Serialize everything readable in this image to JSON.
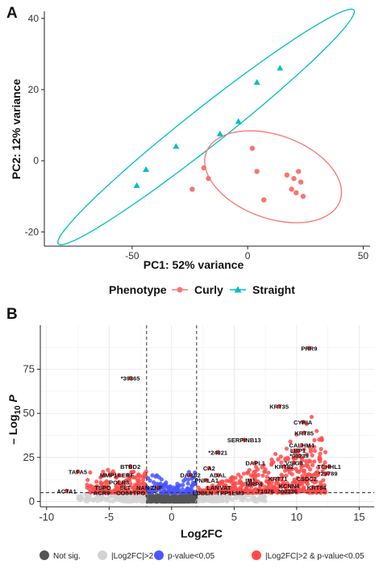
{
  "chart_data": [
    {
      "panel": "A",
      "type": "scatter",
      "xlabel": "PC1: 52% variance",
      "ylabel": "PC2: 12% variance",
      "xlim": [
        -88,
        53
      ],
      "ylim": [
        -24,
        42
      ],
      "xticks": [
        -50,
        0,
        50
      ],
      "yticks": [
        -20,
        0,
        20,
        40
      ],
      "grid": false,
      "legend": {
        "placement": "bottom",
        "title": "Phenotype",
        "entries": [
          "Curly",
          "Straight"
        ]
      },
      "colors": {
        "Curly": "#f8766d",
        "Straight": "#00bfc4"
      },
      "series": [
        {
          "name": "Curly",
          "marker": "circle",
          "points": [
            [
              -19,
              -2
            ],
            [
              -17,
              -5
            ],
            [
              -24,
              -8
            ],
            [
              2,
              3.5
            ],
            [
              4,
              -3
            ],
            [
              7,
              -11
            ],
            [
              17,
              -4
            ],
            [
              19,
              -8
            ],
            [
              20,
              -5
            ],
            [
              21,
              -9
            ],
            [
              22,
              -3
            ],
            [
              23,
              -6
            ],
            [
              24,
              -10
            ]
          ]
        },
        {
          "name": "Straight",
          "marker": "triangle",
          "points": [
            [
              -48,
              -7
            ],
            [
              -44,
              -2.5
            ],
            [
              -31,
              4
            ],
            [
              -12,
              7.5
            ],
            [
              -4,
              11
            ],
            [
              4,
              22
            ],
            [
              14,
              26
            ]
          ]
        }
      ],
      "ellipses": [
        {
          "series": "Straight",
          "cx": -18,
          "cy": 9.5,
          "rx": 72,
          "ry": 6,
          "angle_deg": 27
        },
        {
          "series": "Curly",
          "cx": 11,
          "cy": -4.5,
          "rx": 30,
          "ry": 12,
          "angle_deg": -10
        }
      ]
    },
    {
      "panel": "B",
      "type": "scatter",
      "xlabel": "Log2FC",
      "ylabel": "-Log10 P",
      "xlim": [
        -10.5,
        16.2
      ],
      "ylim": [
        -3,
        100
      ],
      "xticks": [
        -10,
        -5,
        0,
        5,
        10,
        15
      ],
      "yticks": [
        0,
        25,
        50,
        75
      ],
      "cutoffs": {
        "log2fc": [
          -2,
          2
        ],
        "neglog10p": 5
      },
      "legend": {
        "placement": "bottom",
        "entries": [
          "Not sig.",
          "|Log2FC|>2",
          "p-value<0.05",
          "|Log2FC|>2 & p-value<0.05"
        ]
      },
      "colors": {
        "Not sig.": "#555555",
        "|Log2FC|>2": "#d3d3d3",
        "p-value<0.05": "#4a55ff",
        "|Log2FC|>2 & p-value<0.05": "#ff4b4b"
      },
      "labels": [
        {
          "text": "PRR9",
          "x": 11.0,
          "y": 87
        },
        {
          "text": "*39365",
          "x": -3.3,
          "y": 70
        },
        {
          "text": "KRT35",
          "x": 8.6,
          "y": 54
        },
        {
          "text": "CYRIA",
          "x": 10.5,
          "y": 45
        },
        {
          "text": "SERPINB13",
          "x": 5.8,
          "y": 35
        },
        {
          "text": "KRT85",
          "x": 10.6,
          "y": 39
        },
        {
          "text": "CALHM4",
          "x": 10.4,
          "y": 32
        },
        {
          "text": "LBP1",
          "x": 10.1,
          "y": 29
        },
        {
          "text": "*24021",
          "x": 3.7,
          "y": 28
        },
        {
          "text": "*00239",
          "x": 10.2,
          "y": 26
        },
        {
          "text": "DAPL1",
          "x": 6.7,
          "y": 22
        },
        {
          "text": "VSIG8",
          "x": 9.8,
          "y": 22
        },
        {
          "text": "TCHHL1",
          "x": 12.6,
          "y": 20
        },
        {
          "text": "BTBD2",
          "x": -3.3,
          "y": 20
        },
        {
          "text": "KRT82",
          "x": 9.0,
          "y": 20
        },
        {
          "text": "CA2",
          "x": 3.0,
          "y": 19
        },
        {
          "text": "TAFA5",
          "x": -7.5,
          "y": 17
        },
        {
          "text": "DARS2",
          "x": 1.5,
          "y": 15
        },
        {
          "text": "ADAL",
          "x": 3.7,
          "y": 15
        },
        {
          "text": "*29789",
          "x": 12.5,
          "y": 16
        },
        {
          "text": "MMP16",
          "x": -4.9,
          "y": 15
        },
        {
          "text": "ERF",
          "x": -3.5,
          "y": 15
        },
        {
          "text": "KRT71",
          "x": 8.5,
          "y": 13
        },
        {
          "text": "CSDC2",
          "x": 10.8,
          "y": 13
        },
        {
          "text": "PNPLA1",
          "x": 2.8,
          "y": 12
        },
        {
          "text": "IM1",
          "x": 6.3,
          "y": 12
        },
        {
          "text": "POLR3",
          "x": -4.2,
          "y": 11
        },
        {
          "text": "MRP4",
          "x": 6.6,
          "y": 10
        },
        {
          "text": "KCNN4",
          "x": 9.4,
          "y": 9
        },
        {
          "text": "TSPO",
          "x": -5.5,
          "y": 8
        },
        {
          "text": "SLT",
          "x": -3.7,
          "y": 8
        },
        {
          "text": "NAN",
          "x": -2.3,
          "y": 8
        },
        {
          "text": "ZNF",
          "x": -1.2,
          "y": 8
        },
        {
          "text": "LAN",
          "x": 3.3,
          "y": 8
        },
        {
          "text": "VAT",
          "x": 4.3,
          "y": 8
        },
        {
          "text": "KRT84",
          "x": 11.6,
          "y": 8
        },
        {
          "text": "ACTA1",
          "x": -8.4,
          "y": 6
        },
        {
          "text": "ACR9",
          "x": -5.6,
          "y": 5
        },
        {
          "text": "CO04",
          "x": -3.8,
          "y": 5
        },
        {
          "text": "TPO",
          "x": -2.6,
          "y": 5
        },
        {
          "text": "LDBLN",
          "x": 2.5,
          "y": 5
        },
        {
          "text": "TPP1",
          "x": 4.2,
          "y": 5
        },
        {
          "text": "LM3",
          "x": 5.3,
          "y": 5
        },
        {
          "text": "T1076",
          "x": 7.5,
          "y": 6
        },
        {
          "text": "*00236",
          "x": 9.3,
          "y": 6
        }
      ]
    }
  ]
}
